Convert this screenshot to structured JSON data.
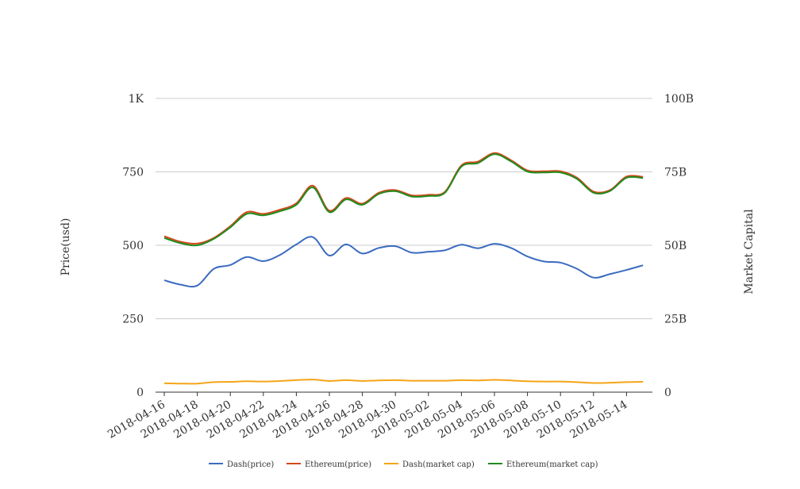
{
  "chart_data": {
    "type": "line",
    "x": [
      "2018-04-16",
      "2018-04-17",
      "2018-04-18",
      "2018-04-19",
      "2018-04-20",
      "2018-04-21",
      "2018-04-22",
      "2018-04-23",
      "2018-04-24",
      "2018-04-25",
      "2018-04-26",
      "2018-04-27",
      "2018-04-28",
      "2018-04-29",
      "2018-04-30",
      "2018-05-01",
      "2018-05-02",
      "2018-05-03",
      "2018-05-04",
      "2018-05-05",
      "2018-05-06",
      "2018-05-07",
      "2018-05-08",
      "2018-05-09",
      "2018-05-10",
      "2018-05-11",
      "2018-05-12",
      "2018-05-13",
      "2018-05-14",
      "2018-05-15"
    ],
    "xticks": [
      "2018-04-16",
      "2018-04-18",
      "2018-04-20",
      "2018-04-22",
      "2018-04-24",
      "2018-04-26",
      "2018-04-28",
      "2018-04-30",
      "2018-05-02",
      "2018-05-04",
      "2018-05-06",
      "2018-05-08",
      "2018-05-10",
      "2018-05-12",
      "2018-05-14"
    ],
    "ylabel": "Price(usd)",
    "y2label": "Market Capital",
    "ylim": [
      0,
      1000
    ],
    "y2lim": [
      0,
      100000000000
    ],
    "yticks": [
      "0",
      "250",
      "500",
      "750",
      "1K"
    ],
    "y2ticks": [
      "0",
      "25B",
      "50B",
      "75B",
      "100B"
    ],
    "grid": true,
    "legend_position": "bottom",
    "series": [
      {
        "name": "Dash(price)",
        "axis": "left",
        "color": "#3a6bbf",
        "values": [
          381,
          366,
          363,
          420,
          433,
          460,
          446,
          467,
          503,
          528,
          465,
          503,
          472,
          491,
          497,
          475,
          478,
          483,
          502,
          490,
          505,
          491,
          462,
          445,
          441,
          420,
          390,
          402,
          416,
          432
        ]
      },
      {
        "name": "Ethereum(price)",
        "axis": "left",
        "color": "#d2491c",
        "values": [
          531,
          512,
          506,
          525,
          565,
          613,
          607,
          621,
          643,
          703,
          618,
          661,
          642,
          679,
          688,
          670,
          672,
          682,
          772,
          785,
          814,
          790,
          755,
          752,
          752,
          730,
          683,
          688,
          734,
          733
        ]
      },
      {
        "name": "Dash(market cap)",
        "axis": "right",
        "color": "#f5a418",
        "values": [
          3040000000,
          2920000000,
          2910000000,
          3400000000,
          3500000000,
          3700000000,
          3600000000,
          3800000000,
          4100000000,
          4300000000,
          3800000000,
          4100000000,
          3800000000,
          4000000000,
          4100000000,
          3900000000,
          3900000000,
          3900000000,
          4100000000,
          4000000000,
          4200000000,
          4000000000,
          3700000000,
          3600000000,
          3600000000,
          3400000000,
          3100000000,
          3200000000,
          3400000000,
          3500000000
        ]
      },
      {
        "name": "Ethereum(market cap)",
        "axis": "right",
        "color": "#1f8c1f",
        "values": [
          52500000000,
          50700000000,
          50000000000,
          52200000000,
          56100000000,
          60700000000,
          60200000000,
          61600000000,
          63800000000,
          69700000000,
          61300000000,
          65600000000,
          63800000000,
          67500000000,
          68400000000,
          66600000000,
          66800000000,
          67900000000,
          76800000000,
          78000000000,
          81000000000,
          78600000000,
          75100000000,
          74800000000,
          74800000000,
          72600000000,
          67900000000,
          68500000000,
          73000000000,
          72900000000
        ]
      }
    ]
  }
}
